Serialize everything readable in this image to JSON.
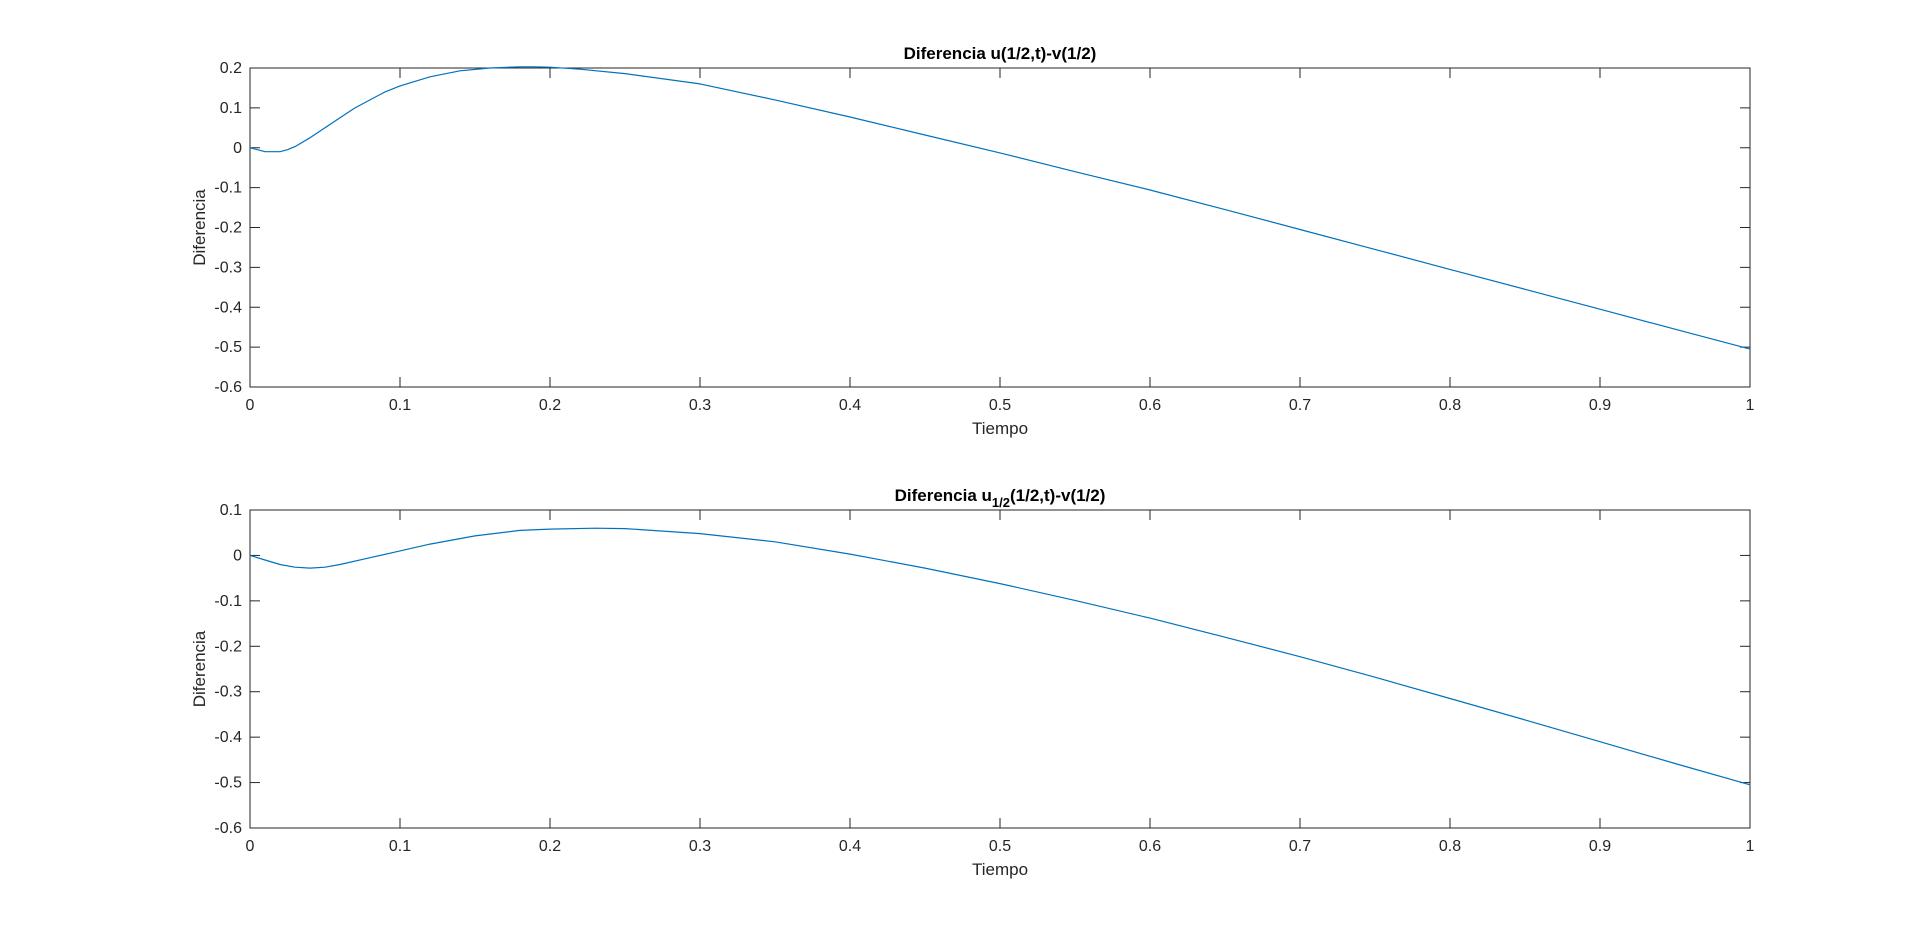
{
  "chart_data": [
    {
      "type": "line",
      "title": "Diferencia u(1/2,t)-v(1/2)",
      "title_parts": {
        "main": "Diferencia u(1/2,t)-v(1/2)",
        "sub": "",
        "tail": ""
      },
      "xlabel": "Tiempo",
      "ylabel": "Diferencia",
      "xlim": [
        0,
        1
      ],
      "ylim": [
        -0.6,
        0.2
      ],
      "xticks": [
        0,
        0.1,
        0.2,
        0.3,
        0.4,
        0.5,
        0.6,
        0.7,
        0.8,
        0.9,
        1
      ],
      "xtick_labels": [
        "0",
        "0.1",
        "0.2",
        "0.3",
        "0.4",
        "0.5",
        "0.6",
        "0.7",
        "0.8",
        "0.9",
        "1"
      ],
      "yticks": [
        0.2,
        0.1,
        0,
        -0.1,
        -0.2,
        -0.3,
        -0.4,
        -0.5,
        -0.6
      ],
      "ytick_labels": [
        "0.2",
        "0.1",
        "0",
        "-0.1",
        "-0.2",
        "-0.3",
        "-0.4",
        "-0.5",
        "-0.6"
      ],
      "grid": false,
      "line_color": "#0072BD",
      "series": [
        {
          "x": [
            0,
            0.005,
            0.01,
            0.015,
            0.02,
            0.025,
            0.03,
            0.04,
            0.05,
            0.06,
            0.07,
            0.08,
            0.09,
            0.1,
            0.12,
            0.14,
            0.16,
            0.18,
            0.19,
            0.2,
            0.22,
            0.25,
            0.3,
            0.35,
            0.4,
            0.45,
            0.5,
            0.55,
            0.6,
            0.65,
            0.7,
            0.75,
            0.8,
            0.85,
            0.9,
            0.95,
            1
          ],
          "y": [
            0,
            -0.005,
            -0.01,
            -0.01,
            -0.01,
            -0.005,
            0.003,
            0.025,
            0.05,
            0.075,
            0.1,
            0.12,
            0.14,
            0.155,
            0.178,
            0.193,
            0.2,
            0.203,
            0.203,
            0.202,
            0.197,
            0.186,
            0.16,
            0.12,
            0.077,
            0.032,
            -0.013,
            -0.06,
            -0.106,
            -0.155,
            -0.205,
            -0.255,
            -0.305,
            -0.355,
            -0.405,
            -0.455,
            -0.505
          ]
        }
      ]
    },
    {
      "type": "line",
      "title": "Diferencia u1/2(1/2,t)-v(1/2)",
      "title_parts": {
        "main": "Diferencia u",
        "sub": "1/2",
        "tail": "(1/2,t)-v(1/2)"
      },
      "xlabel": "Tiempo",
      "ylabel": "Diferencia",
      "xlim": [
        0,
        1
      ],
      "ylim": [
        -0.6,
        0.1
      ],
      "xticks": [
        0,
        0.1,
        0.2,
        0.3,
        0.4,
        0.5,
        0.6,
        0.7,
        0.8,
        0.9,
        1
      ],
      "xtick_labels": [
        "0",
        "0.1",
        "0.2",
        "0.3",
        "0.4",
        "0.5",
        "0.6",
        "0.7",
        "0.8",
        "0.9",
        "1"
      ],
      "yticks": [
        0.1,
        0,
        -0.1,
        -0.2,
        -0.3,
        -0.4,
        -0.5,
        -0.6
      ],
      "ytick_labels": [
        "0.1",
        "0",
        "-0.1",
        "-0.2",
        "-0.3",
        "-0.4",
        "-0.5",
        "-0.6"
      ],
      "grid": false,
      "line_color": "#0072BD",
      "series": [
        {
          "x": [
            0,
            0.01,
            0.02,
            0.03,
            0.04,
            0.05,
            0.06,
            0.08,
            0.1,
            0.12,
            0.15,
            0.18,
            0.2,
            0.23,
            0.25,
            0.3,
            0.35,
            0.4,
            0.45,
            0.5,
            0.55,
            0.6,
            0.65,
            0.7,
            0.75,
            0.8,
            0.85,
            0.9,
            0.95,
            1
          ],
          "y": [
            0,
            -0.01,
            -0.02,
            -0.026,
            -0.028,
            -0.026,
            -0.02,
            -0.005,
            0.01,
            0.025,
            0.043,
            0.055,
            0.058,
            0.06,
            0.059,
            0.048,
            0.03,
            0.003,
            -0.028,
            -0.062,
            -0.099,
            -0.138,
            -0.18,
            -0.223,
            -0.268,
            -0.315,
            -0.362,
            -0.41,
            -0.458,
            -0.505
          ]
        }
      ]
    }
  ]
}
